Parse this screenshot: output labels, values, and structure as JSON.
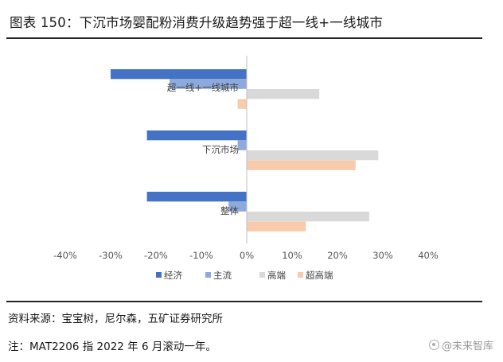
{
  "figure_title": "图表 150：下沉市场婴配粉消费升级趋势强于超一线+一线城市",
  "source": "资料来源：宝宝树，尼尔森，五矿证券研究所",
  "note": "注：MAT2206 指 2022 年 6 月滚动一年。",
  "watermark": "@未来智库",
  "colors": {
    "经济": "#4472C4",
    "主流": "#8EA9DB",
    "高端": "#D9D9D9",
    "超高端": "#F8CBAD"
  },
  "chart_data": {
    "type": "bar",
    "orientation": "horizontal",
    "categories": [
      "超一线+一线城市",
      "下沉市场",
      "整体"
    ],
    "series": [
      {
        "name": "经济",
        "values": [
          -30,
          -22,
          -22
        ]
      },
      {
        "name": "主流",
        "values": [
          -17,
          -2,
          -4
        ]
      },
      {
        "name": "高端",
        "values": [
          16,
          29,
          27
        ]
      },
      {
        "name": "超高端",
        "values": [
          -2,
          24,
          13
        ]
      }
    ],
    "xlim": [
      -40,
      40
    ],
    "xticks": [
      "-40%",
      "-30%",
      "-20%",
      "-10%",
      "0%",
      "10%",
      "20%",
      "30%",
      "40%"
    ],
    "grid": false,
    "legend": "bottom"
  }
}
